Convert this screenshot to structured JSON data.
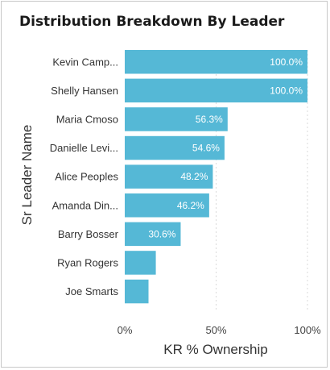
{
  "chart_data": {
    "type": "bar",
    "orientation": "horizontal",
    "title": "Distribution Breakdown By Leader",
    "xlabel": "KR % Ownership",
    "ylabel": "Sr Leader Name",
    "categories": [
      "Kevin Camp...",
      "Shelly Hansen",
      "Maria Cmoso",
      "Danielle Levi...",
      "Alice Peoples",
      "Amanda Din...",
      "Barry Bosser",
      "Ryan Rogers",
      "Joe Smarts"
    ],
    "values": [
      100.0,
      100.0,
      56.3,
      54.6,
      48.2,
      46.2,
      30.6,
      17,
      13
    ],
    "data_labels": [
      "100.0%",
      "100.0%",
      "56.3%",
      "54.6%",
      "48.2%",
      "46.2%",
      "30.6%",
      "",
      ""
    ],
    "xlim": [
      0,
      100
    ],
    "x_ticks": [
      "0%",
      "50%",
      "100%"
    ],
    "x_tick_values": [
      0,
      50,
      100
    ],
    "grid": "vertical dotted",
    "bar_color": "#55b8d6"
  }
}
